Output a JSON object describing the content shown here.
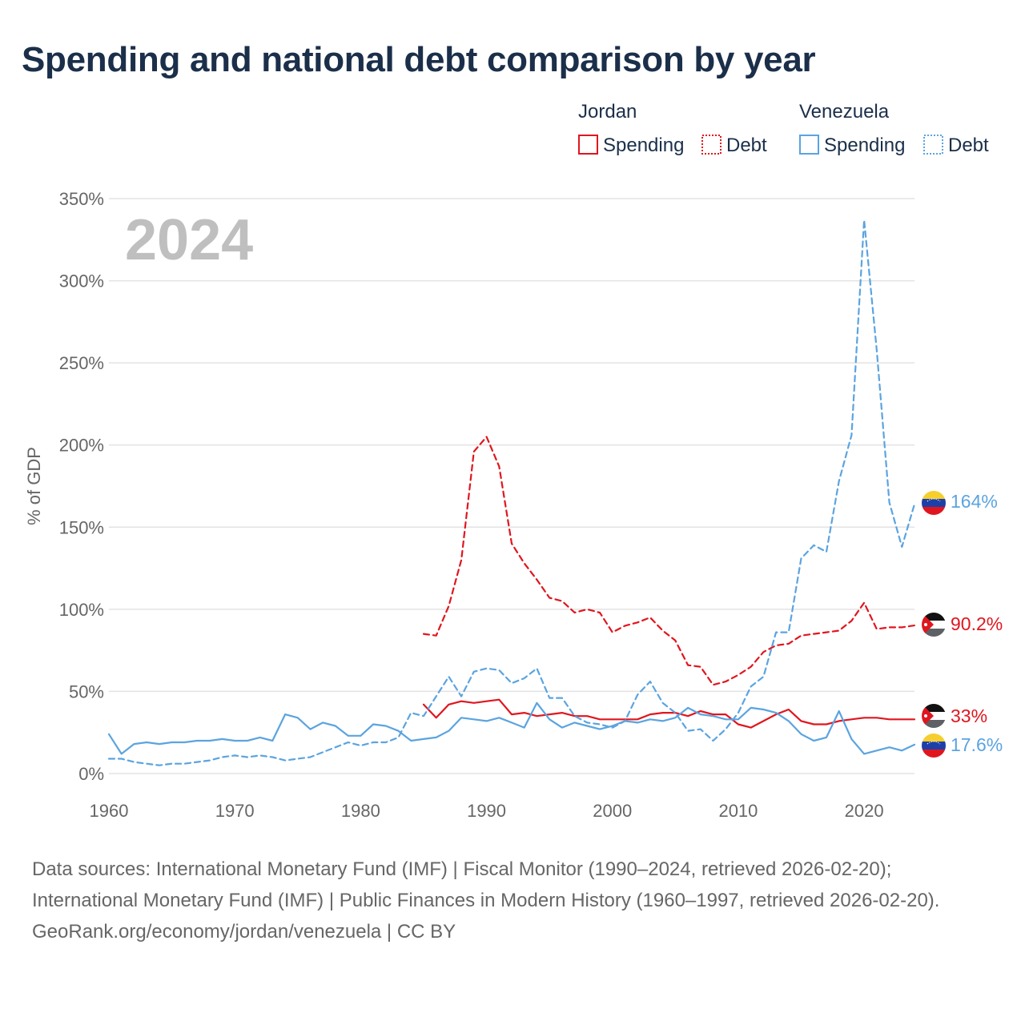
{
  "title": "Spending and national debt comparison by year",
  "footer": {
    "sources": "Data sources: International Monetary Fund (IMF) | Fiscal Monitor (1990–2024, retrieved 2026-02-20); International Monetary Fund (IMF) | Public Finances in Modern History (1960–1997, retrieved 2026-02-20).",
    "credit": "GeoRank.org/economy/jordan/venezuela | CC BY"
  },
  "chart_data": {
    "type": "line",
    "year_label": "2024",
    "ylabel": "% of GDP",
    "xlim": [
      1960,
      2024
    ],
    "ylim": [
      0,
      350
    ],
    "x_ticks": [
      1960,
      1970,
      1980,
      1990,
      2000,
      2010,
      2020
    ],
    "y_ticks": [
      0,
      50,
      100,
      150,
      200,
      250,
      300,
      350
    ],
    "y_tick_labels": [
      "0%",
      "50%",
      "100%",
      "150%",
      "200%",
      "250%",
      "300%",
      "350%"
    ],
    "legend": {
      "groups": [
        {
          "country": "Jordan",
          "items": [
            "Spending",
            "Debt"
          ]
        },
        {
          "country": "Venezuela",
          "items": [
            "Spending",
            "Debt"
          ]
        }
      ]
    },
    "colors": {
      "jordan": "#e0161e",
      "venezuela": "#5ba4e0"
    },
    "series": [
      {
        "name": "Jordan Spending",
        "country": "jordan",
        "style": "solid",
        "end_label": "33%",
        "x": [
          1985,
          1986,
          1987,
          1988,
          1989,
          1990,
          1991,
          1992,
          1993,
          1994,
          1995,
          1996,
          1997,
          1998,
          1999,
          2000,
          2001,
          2002,
          2003,
          2004,
          2005,
          2006,
          2007,
          2008,
          2009,
          2010,
          2011,
          2012,
          2013,
          2014,
          2015,
          2016,
          2017,
          2018,
          2019,
          2020,
          2021,
          2022,
          2023,
          2024
        ],
        "values": [
          42,
          34,
          42,
          44,
          43,
          44,
          45,
          36,
          37,
          35,
          36,
          37,
          35,
          35,
          33,
          33,
          33,
          33,
          36,
          37,
          37,
          35,
          38,
          36,
          36,
          30,
          28,
          32,
          36,
          39,
          32,
          30,
          30,
          32,
          33,
          34,
          34,
          33,
          33,
          33
        ]
      },
      {
        "name": "Jordan Debt",
        "country": "jordan",
        "style": "dashed",
        "end_label": "90.2%",
        "x": [
          1985,
          1986,
          1987,
          1988,
          1989,
          1990,
          1991,
          1992,
          1993,
          1994,
          1995,
          1996,
          1997,
          1998,
          1999,
          2000,
          2001,
          2002,
          2003,
          2004,
          2005,
          2006,
          2007,
          2008,
          2009,
          2010,
          2011,
          2012,
          2013,
          2014,
          2015,
          2016,
          2017,
          2018,
          2019,
          2020,
          2021,
          2022,
          2023,
          2024
        ],
        "values": [
          85,
          84,
          102,
          130,
          196,
          205,
          187,
          140,
          128,
          118,
          107,
          105,
          98,
          100,
          98,
          86,
          90,
          92,
          95,
          87,
          81,
          66,
          65,
          54,
          56,
          60,
          65,
          74,
          78,
          79,
          84,
          85,
          86,
          87,
          93,
          104,
          88,
          89,
          89,
          90.2
        ]
      },
      {
        "name": "Venezuela Spending",
        "country": "venezuela",
        "style": "solid",
        "end_label": "17.6%",
        "x": [
          1960,
          1961,
          1962,
          1963,
          1964,
          1965,
          1966,
          1967,
          1968,
          1969,
          1970,
          1971,
          1972,
          1973,
          1974,
          1975,
          1976,
          1977,
          1978,
          1979,
          1980,
          1981,
          1982,
          1983,
          1984,
          1985,
          1986,
          1987,
          1988,
          1989,
          1990,
          1991,
          1992,
          1993,
          1994,
          1995,
          1996,
          1997,
          1998,
          1999,
          2000,
          2001,
          2002,
          2003,
          2004,
          2005,
          2006,
          2007,
          2008,
          2009,
          2010,
          2011,
          2012,
          2013,
          2014,
          2015,
          2016,
          2017,
          2018,
          2019,
          2020,
          2021,
          2022,
          2023,
          2024
        ],
        "values": [
          24,
          12,
          18,
          19,
          18,
          19,
          19,
          20,
          20,
          21,
          20,
          20,
          22,
          20,
          36,
          34,
          27,
          31,
          29,
          23,
          23,
          30,
          29,
          26,
          20,
          21,
          22,
          26,
          34,
          33,
          32,
          34,
          31,
          28,
          43,
          33,
          28,
          31,
          29,
          27,
          29,
          32,
          31,
          33,
          32,
          34,
          40,
          36,
          35,
          33,
          33,
          40,
          39,
          37,
          32,
          24,
          20,
          22,
          38,
          21,
          12,
          14,
          16,
          14,
          17.6
        ]
      },
      {
        "name": "Venezuela Debt",
        "country": "venezuela",
        "style": "dashed",
        "end_label": "164%",
        "x": [
          1960,
          1961,
          1962,
          1963,
          1964,
          1965,
          1966,
          1967,
          1968,
          1969,
          1970,
          1971,
          1972,
          1973,
          1974,
          1975,
          1976,
          1977,
          1978,
          1979,
          1980,
          1981,
          1982,
          1983,
          1984,
          1985,
          1986,
          1987,
          1988,
          1989,
          1990,
          1991,
          1992,
          1993,
          1994,
          1995,
          1996,
          1997,
          1998,
          1999,
          2000,
          2001,
          2002,
          2003,
          2004,
          2005,
          2006,
          2007,
          2008,
          2009,
          2010,
          2011,
          2012,
          2013,
          2014,
          2015,
          2016,
          2017,
          2018,
          2019,
          2020,
          2021,
          2022,
          2023,
          2024
        ],
        "values": [
          9,
          9,
          7,
          6,
          5,
          6,
          6,
          7,
          8,
          10,
          11,
          10,
          11,
          10,
          8,
          9,
          10,
          13,
          16,
          19,
          17,
          19,
          19,
          22,
          37,
          35,
          47,
          59,
          47,
          62,
          64,
          63,
          55,
          58,
          64,
          46,
          46,
          35,
          31,
          30,
          28,
          32,
          48,
          56,
          43,
          37,
          26,
          27,
          20,
          27,
          37,
          53,
          59,
          86,
          86,
          131,
          139,
          135,
          178,
          206,
          337,
          258,
          165,
          138,
          164
        ]
      }
    ]
  }
}
